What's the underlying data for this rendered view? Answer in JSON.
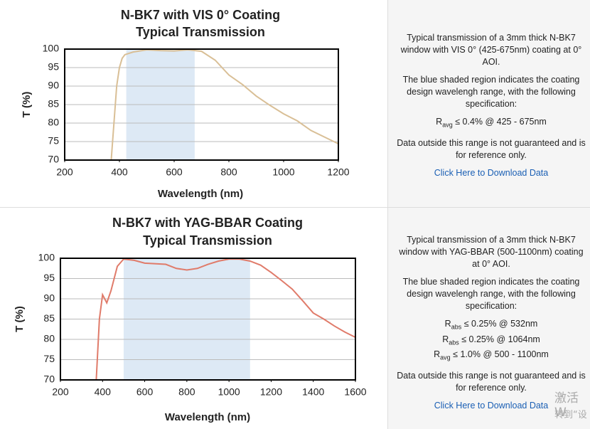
{
  "chart_data": [
    {
      "type": "line",
      "title": "N-BK7 with VIS 0° Coating",
      "subtitle": "Typical Transmission",
      "x_label": "Wavelength (nm)",
      "y_label": "T (%)",
      "xlim": [
        200,
        1200
      ],
      "xticks": [
        200,
        400,
        600,
        800,
        1000,
        1200
      ],
      "ylim": [
        70,
        100
      ],
      "yticks": [
        70,
        75,
        80,
        85,
        90,
        95,
        100
      ],
      "grid": true,
      "shaded_range": [
        425,
        675
      ],
      "shade_color": "#dde9f5",
      "series": [
        {
          "color": "#d9bf96",
          "x": [
            370,
            380,
            390,
            400,
            410,
            420,
            450,
            500,
            550,
            600,
            650,
            700,
            750,
            800,
            850,
            900,
            950,
            1000,
            1050,
            1100,
            1150,
            1200
          ],
          "values": [
            70,
            80,
            90,
            95,
            97.5,
            98.5,
            99.2,
            99.8,
            99.6,
            99.5,
            99.8,
            99.4,
            97,
            93,
            90.4,
            87.3,
            84.8,
            82.5,
            80.6,
            78,
            76.2,
            74.4
          ]
        }
      ]
    },
    {
      "type": "line",
      "title": "N-BK7 with YAG-BBAR Coating",
      "subtitle": "Typical Transmission",
      "x_label": "Wavelength (nm)",
      "y_label": "T (%)",
      "xlim": [
        200,
        1600
      ],
      "xticks": [
        200,
        400,
        600,
        800,
        1000,
        1200,
        1400,
        1600
      ],
      "ylim": [
        70,
        100
      ],
      "yticks": [
        70,
        75,
        80,
        85,
        90,
        95,
        100
      ],
      "grid": true,
      "shaded_range": [
        500,
        1100
      ],
      "shade_color": "#dde9f5",
      "series": [
        {
          "color": "#e07b6a",
          "x": [
            370,
            385,
            400,
            420,
            440,
            470,
            500,
            550,
            600,
            700,
            750,
            800,
            850,
            900,
            950,
            1000,
            1050,
            1100,
            1150,
            1200,
            1250,
            1300,
            1350,
            1400,
            1450,
            1500,
            1550,
            1600
          ],
          "values": [
            70,
            85,
            91,
            89,
            92,
            98,
            99.8,
            99.5,
            98.8,
            98.5,
            97.5,
            97.1,
            97.5,
            98.5,
            99.3,
            99.8,
            99.8,
            99.3,
            98.3,
            96.5,
            94.5,
            92.4,
            89.5,
            86.5,
            85,
            83.3,
            81.8,
            80.5
          ]
        }
      ]
    }
  ],
  "panels": [
    {
      "paragraphs": [
        "Typical transmission of a 3mm thick N-BK7 window with VIS 0° (425-675nm) coating at 0° AOI.",
        "The blue shaded region indicates the coating design wavelengh range, with the following specification:"
      ],
      "specs": [
        {
          "symbol": "R",
          "sub": "avg",
          "text": "≤ 0.4% @ 425 - 675nm"
        }
      ],
      "note": "Data outside this range is not guaranteed and is for reference only.",
      "link": "Click Here to Download Data"
    },
    {
      "paragraphs": [
        "Typical transmission of a 3mm thick N-BK7 window with YAG-BBAR (500-1100nm) coating at 0° AOI.",
        "The blue shaded region indicates the coating design wavelengh range, with the following specification:"
      ],
      "specs": [
        {
          "symbol": "R",
          "sub": "abs",
          "text": "≤ 0.25% @ 532nm"
        },
        {
          "symbol": "R",
          "sub": "abs",
          "text": "≤ 0.25% @ 1064nm"
        },
        {
          "symbol": "R",
          "sub": "avg",
          "text": "≤ 1.0% @ 500 - 1100nm"
        }
      ],
      "note": "Data outside this range is not guaranteed and is for reference only.",
      "link": "Click Here to Download Data"
    }
  ],
  "watermark": [
    "激活 W",
    "转到“设"
  ]
}
